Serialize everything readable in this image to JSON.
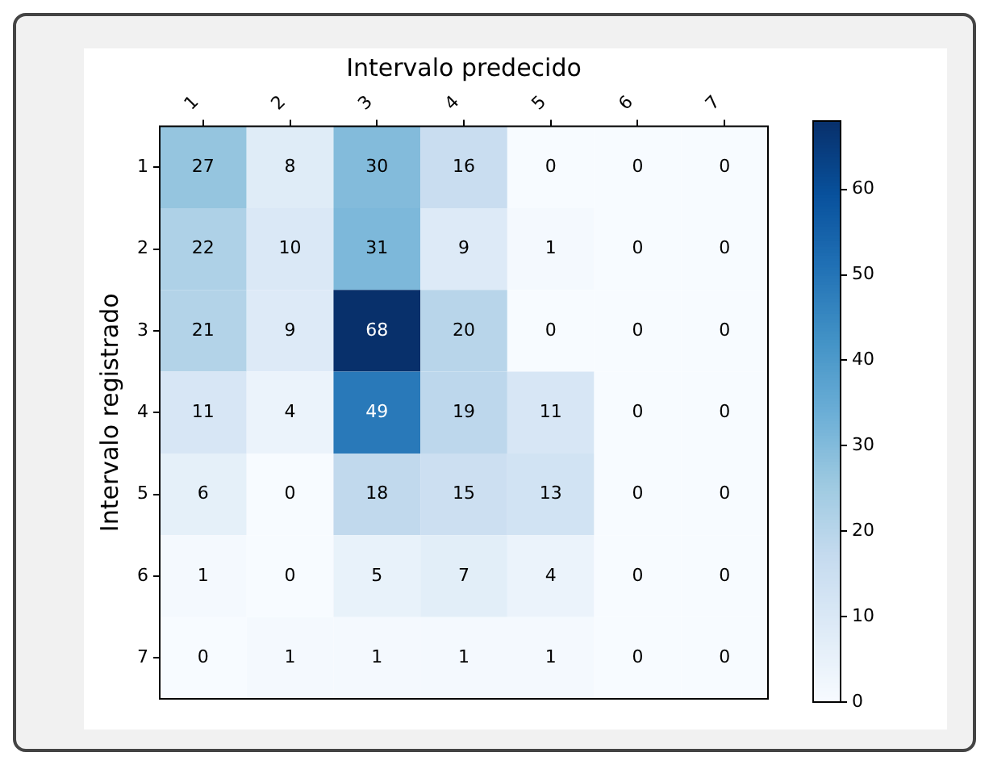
{
  "chart_data": {
    "type": "heatmap",
    "xlabel": "Intervalo predecido",
    "ylabel": "Intervalo registrado",
    "categories": [
      "1",
      "2",
      "3",
      "4",
      "5",
      "6",
      "7"
    ],
    "y_categories": [
      "1",
      "2",
      "3",
      "4",
      "5",
      "6",
      "7"
    ],
    "cells": [
      [
        27,
        8,
        30,
        16,
        0,
        0,
        0
      ],
      [
        22,
        10,
        31,
        9,
        1,
        0,
        0
      ],
      [
        21,
        9,
        68,
        20,
        0,
        0,
        0
      ],
      [
        11,
        4,
        49,
        19,
        11,
        0,
        0
      ],
      [
        6,
        0,
        18,
        15,
        13,
        0,
        0
      ],
      [
        1,
        0,
        5,
        7,
        4,
        0,
        0
      ],
      [
        0,
        1,
        1,
        1,
        1,
        0,
        0
      ]
    ],
    "clim": [
      0,
      68
    ],
    "cticks": [
      0,
      10,
      20,
      30,
      40,
      50,
      60
    ],
    "data_labels": true,
    "grid": false
  }
}
